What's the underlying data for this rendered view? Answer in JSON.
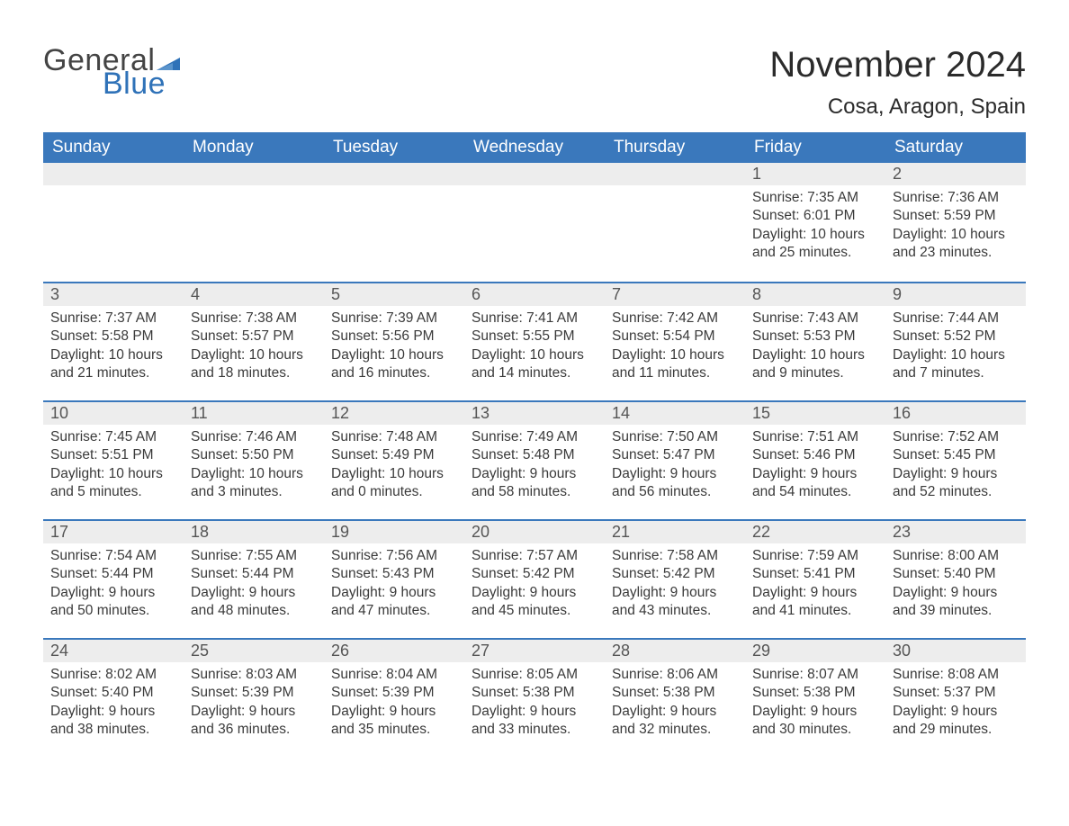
{
  "logo": {
    "word1": "General",
    "word2": "Blue",
    "flag_color": "#2f72b8"
  },
  "title": "November 2024",
  "location": "Cosa, Aragon, Spain",
  "colors": {
    "header_bg": "#3a78bc",
    "header_text": "#ffffff",
    "daynum_bg": "#ededed",
    "row_divider": "#3a78bc",
    "body_text": "#3a3a3a",
    "logo_blue": "#2f72b8",
    "logo_grey": "#444444",
    "page_bg": "#ffffff"
  },
  "typography": {
    "title_fontsize": 40,
    "location_fontsize": 24,
    "header_fontsize": 19,
    "daynum_fontsize": 18,
    "body_fontsize": 15.5,
    "font_family": "Arial"
  },
  "columns": [
    "Sunday",
    "Monday",
    "Tuesday",
    "Wednesday",
    "Thursday",
    "Friday",
    "Saturday"
  ],
  "weeks": [
    [
      null,
      null,
      null,
      null,
      null,
      {
        "n": "1",
        "sunrise": "7:35 AM",
        "sunset": "6:01 PM",
        "daylight": "10 hours and 25 minutes."
      },
      {
        "n": "2",
        "sunrise": "7:36 AM",
        "sunset": "5:59 PM",
        "daylight": "10 hours and 23 minutes."
      }
    ],
    [
      {
        "n": "3",
        "sunrise": "7:37 AM",
        "sunset": "5:58 PM",
        "daylight": "10 hours and 21 minutes."
      },
      {
        "n": "4",
        "sunrise": "7:38 AM",
        "sunset": "5:57 PM",
        "daylight": "10 hours and 18 minutes."
      },
      {
        "n": "5",
        "sunrise": "7:39 AM",
        "sunset": "5:56 PM",
        "daylight": "10 hours and 16 minutes."
      },
      {
        "n": "6",
        "sunrise": "7:41 AM",
        "sunset": "5:55 PM",
        "daylight": "10 hours and 14 minutes."
      },
      {
        "n": "7",
        "sunrise": "7:42 AM",
        "sunset": "5:54 PM",
        "daylight": "10 hours and 11 minutes."
      },
      {
        "n": "8",
        "sunrise": "7:43 AM",
        "sunset": "5:53 PM",
        "daylight": "10 hours and 9 minutes."
      },
      {
        "n": "9",
        "sunrise": "7:44 AM",
        "sunset": "5:52 PM",
        "daylight": "10 hours and 7 minutes."
      }
    ],
    [
      {
        "n": "10",
        "sunrise": "7:45 AM",
        "sunset": "5:51 PM",
        "daylight": "10 hours and 5 minutes."
      },
      {
        "n": "11",
        "sunrise": "7:46 AM",
        "sunset": "5:50 PM",
        "daylight": "10 hours and 3 minutes."
      },
      {
        "n": "12",
        "sunrise": "7:48 AM",
        "sunset": "5:49 PM",
        "daylight": "10 hours and 0 minutes."
      },
      {
        "n": "13",
        "sunrise": "7:49 AM",
        "sunset": "5:48 PM",
        "daylight": "9 hours and 58 minutes."
      },
      {
        "n": "14",
        "sunrise": "7:50 AM",
        "sunset": "5:47 PM",
        "daylight": "9 hours and 56 minutes."
      },
      {
        "n": "15",
        "sunrise": "7:51 AM",
        "sunset": "5:46 PM",
        "daylight": "9 hours and 54 minutes."
      },
      {
        "n": "16",
        "sunrise": "7:52 AM",
        "sunset": "5:45 PM",
        "daylight": "9 hours and 52 minutes."
      }
    ],
    [
      {
        "n": "17",
        "sunrise": "7:54 AM",
        "sunset": "5:44 PM",
        "daylight": "9 hours and 50 minutes."
      },
      {
        "n": "18",
        "sunrise": "7:55 AM",
        "sunset": "5:44 PM",
        "daylight": "9 hours and 48 minutes."
      },
      {
        "n": "19",
        "sunrise": "7:56 AM",
        "sunset": "5:43 PM",
        "daylight": "9 hours and 47 minutes."
      },
      {
        "n": "20",
        "sunrise": "7:57 AM",
        "sunset": "5:42 PM",
        "daylight": "9 hours and 45 minutes."
      },
      {
        "n": "21",
        "sunrise": "7:58 AM",
        "sunset": "5:42 PM",
        "daylight": "9 hours and 43 minutes."
      },
      {
        "n": "22",
        "sunrise": "7:59 AM",
        "sunset": "5:41 PM",
        "daylight": "9 hours and 41 minutes."
      },
      {
        "n": "23",
        "sunrise": "8:00 AM",
        "sunset": "5:40 PM",
        "daylight": "9 hours and 39 minutes."
      }
    ],
    [
      {
        "n": "24",
        "sunrise": "8:02 AM",
        "sunset": "5:40 PM",
        "daylight": "9 hours and 38 minutes."
      },
      {
        "n": "25",
        "sunrise": "8:03 AM",
        "sunset": "5:39 PM",
        "daylight": "9 hours and 36 minutes."
      },
      {
        "n": "26",
        "sunrise": "8:04 AM",
        "sunset": "5:39 PM",
        "daylight": "9 hours and 35 minutes."
      },
      {
        "n": "27",
        "sunrise": "8:05 AM",
        "sunset": "5:38 PM",
        "daylight": "9 hours and 33 minutes."
      },
      {
        "n": "28",
        "sunrise": "8:06 AM",
        "sunset": "5:38 PM",
        "daylight": "9 hours and 32 minutes."
      },
      {
        "n": "29",
        "sunrise": "8:07 AM",
        "sunset": "5:38 PM",
        "daylight": "9 hours and 30 minutes."
      },
      {
        "n": "30",
        "sunrise": "8:08 AM",
        "sunset": "5:37 PM",
        "daylight": "9 hours and 29 minutes."
      }
    ]
  ],
  "labels": {
    "sunrise": "Sunrise:",
    "sunset": "Sunset:",
    "daylight": "Daylight:"
  }
}
